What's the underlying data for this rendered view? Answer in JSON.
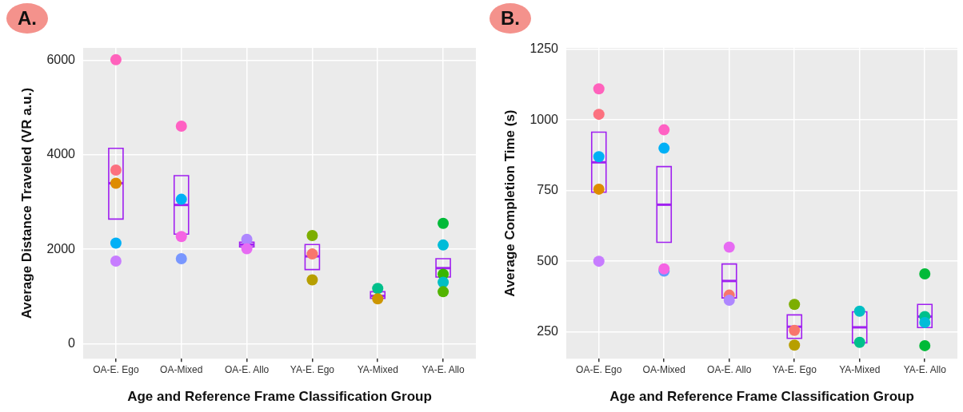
{
  "chart_data": [
    {
      "type": "box",
      "title": "A.",
      "xlabel": "Age and Reference Frame Classification Group",
      "ylabel": "Average Distance Traveled (VR a.u.)",
      "categories": [
        "OA-E. Ego",
        "OA-Mixed",
        "OA-E. Allo",
        "YA-E. Ego",
        "YA-Mixed",
        "YA-E. Allo"
      ],
      "ylim": [
        -320,
        6270
      ],
      "yticks": [
        0,
        2000,
        4000,
        6000
      ],
      "grid": true,
      "marker": "circle",
      "series": [
        {
          "type": "box",
          "color": "#a020f0",
          "boxes": [
            {
              "low": 2640,
              "q1": 2640,
              "median": 3400,
              "q3": 4140,
              "high": 4140
            },
            {
              "low": 2320,
              "q1": 2320,
              "median": 2940,
              "q3": 3560,
              "high": 3560
            },
            {
              "low": 2050,
              "q1": 2050,
              "median": 2100,
              "q3": 2150,
              "high": 2150
            },
            {
              "low": 1570,
              "q1": 1570,
              "median": 1850,
              "q3": 2100,
              "high": 2100
            },
            {
              "low": 960,
              "q1": 960,
              "median": 1010,
              "q3": 1100,
              "high": 1100
            },
            {
              "low": 1410,
              "q1": 1410,
              "median": 1600,
              "q3": 1800,
              "high": 1800
            }
          ]
        },
        {
          "type": "scatter",
          "x": [
            "OA-E. Ego",
            "OA-E. Ego",
            "OA-E. Ego",
            "OA-E. Ego",
            "OA-E. Ego",
            "OA-Mixed",
            "OA-Mixed",
            "OA-Mixed",
            "OA-Mixed",
            "OA-E. Allo",
            "OA-E. Allo",
            "YA-E. Ego",
            "YA-E. Ego",
            "YA-E. Ego",
            "YA-Mixed",
            "YA-Mixed",
            "YA-E. Allo",
            "YA-E. Allo",
            "YA-E. Allo",
            "YA-E. Allo",
            "YA-E. Allo"
          ],
          "values": [
            6020,
            3680,
            3400,
            2130,
            1750,
            4610,
            3060,
            2270,
            1800,
            2210,
            2010,
            2290,
            1900,
            1350,
            1170,
            950,
            2550,
            2090,
            1470,
            1300,
            1100
          ],
          "colors": [
            "#ff62bc",
            "#fc717f",
            "#de8c00",
            "#00b0f6",
            "#c77cff",
            "#ff61c3",
            "#00b0f6",
            "#f564e3",
            "#7997ff",
            "#ae87ff",
            "#e76bf3",
            "#7cae00",
            "#f8766d",
            "#b79f00",
            "#00c08b",
            "#cd9600",
            "#00ba38",
            "#00bcd8",
            "#39b600",
            "#00bfc4",
            "#53b400"
          ]
        }
      ]
    },
    {
      "type": "box",
      "title": "B.",
      "xlabel": "Age and Reference Frame Classification Group",
      "ylabel": "Average Completion Time (s)",
      "categories": [
        "OA-E. Ego",
        "OA-Mixed",
        "OA-E. Allo",
        "YA-E. Ego",
        "YA-Mixed",
        "YA-E. Allo"
      ],
      "ylim": [
        155,
        1255
      ],
      "yticks": [
        250,
        500,
        750,
        1000,
        1250
      ],
      "grid": true,
      "marker": "circle",
      "series": [
        {
          "type": "box",
          "color": "#a020f0",
          "boxes": [
            {
              "low": 744,
              "q1": 744,
              "median": 850,
              "q3": 957,
              "high": 957
            },
            {
              "low": 567,
              "q1": 567,
              "median": 700,
              "q3": 835,
              "high": 835
            },
            {
              "low": 370,
              "q1": 370,
              "median": 430,
              "q3": 490,
              "high": 490
            },
            {
              "low": 227,
              "q1": 227,
              "median": 268,
              "q3": 310,
              "high": 310
            },
            {
              "low": 211,
              "q1": 211,
              "median": 266,
              "q3": 321,
              "high": 321
            },
            {
              "low": 265,
              "q1": 265,
              "median": 304,
              "q3": 347,
              "high": 347
            }
          ]
        },
        {
          "type": "scatter",
          "x": [
            "OA-E. Ego",
            "OA-E. Ego",
            "OA-E. Ego",
            "OA-E. Ego",
            "OA-E. Ego",
            "OA-Mixed",
            "OA-Mixed",
            "OA-Mixed",
            "OA-Mixed",
            "OA-E. Allo",
            "OA-E. Allo",
            "OA-E. Allo",
            "YA-E. Ego",
            "YA-E. Ego",
            "YA-E. Ego",
            "YA-Mixed",
            "YA-Mixed",
            "YA-E. Allo",
            "YA-E. Allo",
            "YA-E. Allo",
            "YA-E. Allo"
          ],
          "values": [
            1110,
            1020,
            870,
            755,
            500,
            965,
            900,
            465,
            473,
            550,
            380,
            362,
            347,
            255,
            203,
            323,
            213,
            455,
            304,
            283,
            201
          ],
          "colors": [
            "#ff62bc",
            "#fc717f",
            "#00b0f6",
            "#de8c00",
            "#c77cff",
            "#ff61c3",
            "#00b0f6",
            "#619cff",
            "#f564e3",
            "#e76bf3",
            "#f8766d",
            "#ae87ff",
            "#7cae00",
            "#f8766d",
            "#b79f00",
            "#00bfc4",
            "#00c08b",
            "#00ba38",
            "#00c08b",
            "#00bcd8",
            "#00ba38"
          ]
        }
      ]
    }
  ]
}
